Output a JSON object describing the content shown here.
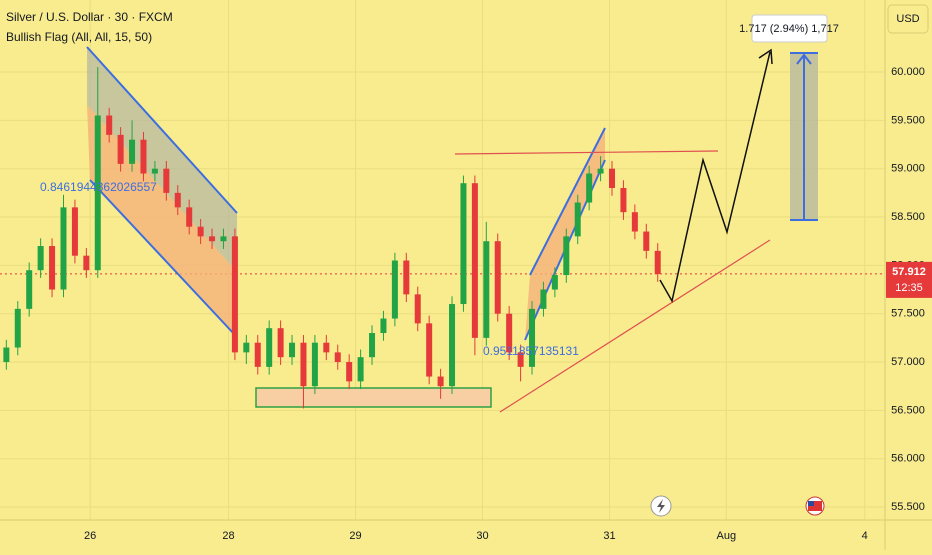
{
  "chart_data": {
    "type": "candlestick",
    "title": "Silver / U.S. Dollar · 30 · FXCM",
    "subtitle": "Bullish Flag (All, All, 15, 50)",
    "currency": "USD",
    "annotations": [
      "0.8461944362026557",
      "0.9511857135131",
      "1.717 (2.94%) 1,717"
    ],
    "last_price": {
      "value": 57.912,
      "label": "57.912"
    },
    "countdown": "12:35",
    "up_color": "#22a446",
    "down_color": "#e5393a",
    "grid": true,
    "xlim": [
      0,
      6.97
    ],
    "xticks": [
      {
        "value": 0.71,
        "label": "26"
      },
      {
        "value": 1.8,
        "label": "28"
      },
      {
        "value": 2.8,
        "label": "29"
      },
      {
        "value": 3.8,
        "label": "30"
      },
      {
        "value": 4.8,
        "label": "31"
      },
      {
        "value": 5.72,
        "label": "Aug"
      },
      {
        "value": 6.81,
        "label": "4"
      }
    ],
    "ylim": [
      55.366,
      60.745
    ],
    "yticks": [
      {
        "value": 55.5,
        "label": "55.500"
      },
      {
        "value": 56,
        "label": "56.000"
      },
      {
        "value": 56.5,
        "label": "56.500"
      },
      {
        "value": 57,
        "label": "57.000"
      },
      {
        "value": 57.5,
        "label": "57.500"
      },
      {
        "value": 58,
        "label": "58.000"
      },
      {
        "value": 58.5,
        "label": "58.500"
      },
      {
        "value": 59,
        "label": "59.000"
      },
      {
        "value": 59.5,
        "label": "59.500"
      },
      {
        "value": 60,
        "label": "60.000"
      }
    ],
    "x": [
      0.05,
      0.14,
      0.23,
      0.32,
      0.41,
      0.5,
      0.59,
      0.68,
      0.77,
      0.86,
      0.95,
      1.04,
      1.13,
      1.22,
      1.31,
      1.4,
      1.49,
      1.58,
      1.67,
      1.76,
      1.85,
      1.94,
      2.03,
      2.12,
      2.21,
      2.3,
      2.39,
      2.48,
      2.57,
      2.66,
      2.75,
      2.84,
      2.93,
      3.02,
      3.11,
      3.2,
      3.29,
      3.38,
      3.47,
      3.56,
      3.65,
      3.74,
      3.83,
      3.92,
      4.01,
      4.1,
      4.19,
      4.28,
      4.37,
      4.46,
      4.55,
      4.64,
      4.73,
      4.82,
      4.91,
      5.0,
      5.09,
      5.18
    ],
    "open": [
      57.0,
      57.15,
      57.55,
      57.95,
      58.2,
      57.75,
      58.6,
      58.1,
      57.95,
      59.55,
      59.35,
      59.05,
      59.3,
      58.95,
      59.0,
      58.75,
      58.6,
      58.4,
      58.3,
      58.25,
      58.3,
      57.1,
      57.2,
      56.95,
      57.35,
      57.05,
      57.2,
      56.75,
      57.2,
      57.1,
      57.0,
      56.8,
      57.05,
      57.3,
      57.45,
      58.05,
      57.7,
      57.4,
      56.85,
      56.75,
      57.6,
      58.85,
      57.25,
      58.25,
      57.5,
      57.1,
      56.95,
      57.55,
      57.75,
      57.9,
      58.3,
      58.65,
      58.95,
      59.0,
      58.8,
      58.55,
      58.35,
      58.15
    ],
    "high": [
      57.23,
      57.63,
      58.03,
      58.28,
      58.28,
      58.73,
      58.68,
      58.18,
      60.05,
      59.63,
      59.43,
      59.5,
      59.38,
      59.08,
      59.08,
      58.83,
      58.68,
      58.48,
      58.38,
      58.38,
      58.38,
      57.28,
      57.28,
      57.43,
      57.43,
      57.28,
      57.28,
      57.28,
      57.28,
      57.18,
      57.08,
      57.13,
      57.38,
      57.53,
      58.13,
      58.13,
      57.78,
      57.48,
      56.93,
      57.68,
      58.93,
      58.93,
      58.45,
      58.33,
      57.58,
      57.18,
      57.63,
      57.83,
      57.98,
      58.38,
      58.73,
      59.03,
      59.13,
      59.08,
      58.88,
      58.63,
      58.43,
      58.23
    ],
    "low": [
      56.92,
      57.07,
      57.47,
      57.87,
      57.67,
      57.67,
      58.02,
      57.87,
      57.87,
      59.27,
      58.97,
      58.97,
      58.87,
      58.87,
      58.67,
      58.52,
      58.32,
      58.22,
      58.17,
      58.17,
      57.02,
      56.98,
      56.87,
      56.87,
      56.97,
      56.97,
      56.52,
      56.67,
      57.02,
      56.92,
      56.72,
      56.72,
      56.97,
      57.22,
      57.37,
      57.62,
      57.32,
      56.77,
      56.62,
      56.67,
      57.52,
      57.07,
      57.17,
      57.42,
      57.02,
      56.8,
      56.87,
      57.47,
      57.67,
      57.82,
      58.22,
      58.57,
      58.87,
      58.72,
      58.47,
      58.27,
      58.07,
      57.83
    ],
    "close": [
      57.15,
      57.55,
      57.95,
      58.2,
      57.75,
      58.6,
      58.1,
      57.95,
      59.55,
      59.35,
      59.05,
      59.3,
      58.95,
      59.0,
      58.75,
      58.6,
      58.4,
      58.3,
      58.25,
      58.3,
      57.1,
      57.2,
      56.95,
      57.35,
      57.05,
      57.2,
      56.75,
      57.2,
      57.1,
      57.0,
      56.8,
      57.05,
      57.3,
      57.45,
      58.05,
      57.7,
      57.4,
      56.85,
      56.75,
      57.6,
      58.85,
      57.25,
      58.25,
      57.5,
      57.1,
      56.95,
      57.55,
      57.75,
      57.9,
      58.3,
      58.65,
      58.95,
      59.0,
      58.8,
      58.55,
      58.35,
      58.15,
      57.91
    ]
  }
}
